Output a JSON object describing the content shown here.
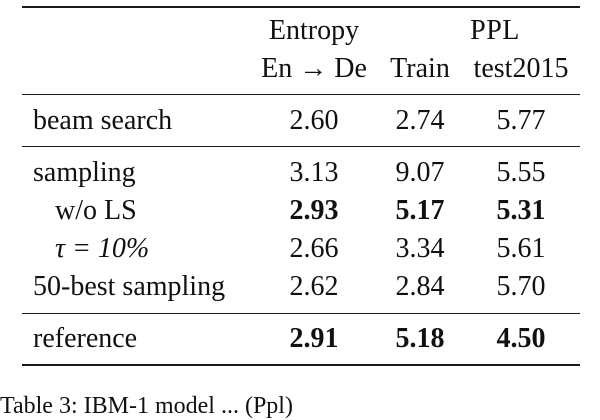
{
  "table": {
    "header": {
      "group_entropy": "Entropy",
      "group_ppl": "PPL",
      "sub_entropy": "En → De",
      "sub_train": "Train",
      "sub_test": "test2015"
    },
    "rows": [
      {
        "label": "beam search",
        "entropy": "2.60",
        "train": "2.74",
        "test": "5.77"
      },
      {
        "label": "sampling",
        "entropy": "3.13",
        "train": "9.07",
        "test": "5.55"
      },
      {
        "label": "w/o LS",
        "entropy": "2.93",
        "train": "5.17",
        "test": "5.31"
      },
      {
        "label": "τ = 10%",
        "entropy": "2.66",
        "train": "3.34",
        "test": "5.61"
      },
      {
        "label": "50-best sampling",
        "entropy": "2.62",
        "train": "2.84",
        "test": "5.70"
      },
      {
        "label": "reference",
        "entropy": "2.91",
        "train": "5.18",
        "test": "4.50"
      }
    ]
  },
  "caption": "Table 3: IBM-1 model ... (Ppl)"
}
